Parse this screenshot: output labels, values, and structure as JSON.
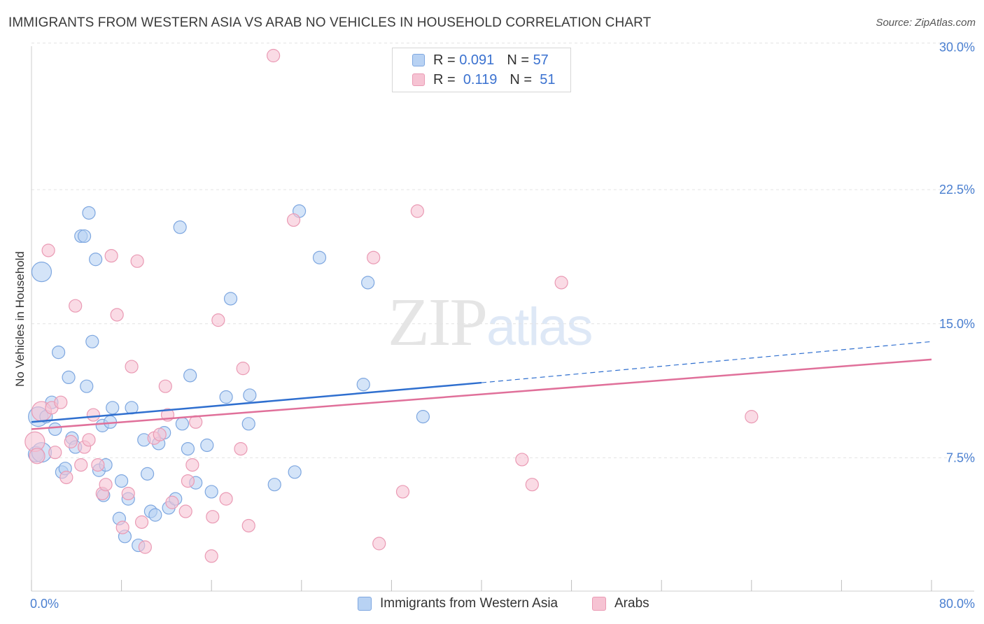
{
  "title": "IMMIGRANTS FROM WESTERN ASIA VS ARAB NO VEHICLES IN HOUSEHOLD CORRELATION CHART",
  "source": "Source: ZipAtlas.com",
  "watermark": {
    "zip": "ZIP",
    "atlas": "atlas"
  },
  "legend": {
    "rows": [
      {
        "r_label": "R =",
        "r_value": "0.091",
        "n_label": "N =",
        "n_value": "57"
      },
      {
        "r_label": "R =",
        "r_value": "0.119",
        "n_label": "N =",
        "n_value": "51"
      }
    ]
  },
  "bottom_legend": [
    "Immigrants from Western Asia",
    "Arabs"
  ],
  "colors": {
    "blue_fill": "#b8d2f3",
    "blue_stroke": "#7ea7e0",
    "blue_line": "#2f6fcf",
    "pink_fill": "#f6c3d3",
    "pink_stroke": "#ea9ab4",
    "pink_line": "#e0709a",
    "grid": "#e3e3e3",
    "tick_text": "#4a7fd0"
  },
  "chart_data": {
    "type": "scatter",
    "title": "IMMIGRANTS FROM WESTERN ASIA VS ARAB NO VEHICLES IN HOUSEHOLD CORRELATION CHART",
    "xlabel": "",
    "ylabel": "No Vehicles in Household",
    "xlim": [
      0,
      80
    ],
    "ylim": [
      0,
      31
    ],
    "x_tick_labels": [
      "0.0%",
      "80.0%"
    ],
    "y_tick_values": [
      7.5,
      15.0,
      22.5,
      30.0
    ],
    "y_tick_labels": [
      "7.5%",
      "15.0%",
      "22.5%",
      "30.0%"
    ],
    "grid": true,
    "series": [
      {
        "name": "Immigrants from Western Asia",
        "color": "#b8d2f3",
        "points": [
          [
            0.6,
            9.8
          ],
          [
            0.4,
            7.7
          ],
          [
            0.9,
            17.9
          ],
          [
            1.3,
            9.8
          ],
          [
            1.8,
            10.6
          ],
          [
            2.1,
            9.1
          ],
          [
            2.4,
            13.4
          ],
          [
            2.7,
            6.7
          ],
          [
            3.0,
            6.9
          ],
          [
            3.3,
            12.0
          ],
          [
            3.6,
            8.6
          ],
          [
            3.9,
            8.1
          ],
          [
            4.4,
            19.9
          ],
          [
            4.7,
            19.9
          ],
          [
            4.9,
            11.5
          ],
          [
            5.1,
            21.2
          ],
          [
            5.4,
            14.0
          ],
          [
            5.7,
            18.6
          ],
          [
            6.0,
            6.8
          ],
          [
            6.3,
            9.3
          ],
          [
            6.4,
            5.4
          ],
          [
            6.6,
            7.1
          ],
          [
            7.0,
            9.5
          ],
          [
            7.2,
            10.3
          ],
          [
            7.8,
            4.1
          ],
          [
            8.0,
            6.2
          ],
          [
            8.3,
            3.1
          ],
          [
            8.6,
            5.2
          ],
          [
            8.9,
            10.3
          ],
          [
            9.5,
            2.6
          ],
          [
            10.0,
            8.5
          ],
          [
            10.3,
            6.6
          ],
          [
            10.6,
            4.5
          ],
          [
            11.0,
            4.3
          ],
          [
            11.3,
            8.3
          ],
          [
            11.8,
            8.9
          ],
          [
            12.2,
            4.7
          ],
          [
            12.8,
            5.2
          ],
          [
            13.2,
            20.4
          ],
          [
            13.4,
            9.4
          ],
          [
            13.9,
            8.0
          ],
          [
            14.1,
            12.1
          ],
          [
            14.6,
            6.1
          ],
          [
            15.6,
            8.2
          ],
          [
            16.0,
            5.6
          ],
          [
            17.3,
            10.9
          ],
          [
            17.7,
            16.4
          ],
          [
            19.3,
            9.4
          ],
          [
            19.4,
            11.0
          ],
          [
            21.6,
            6.0
          ],
          [
            23.4,
            6.7
          ],
          [
            23.8,
            21.3
          ],
          [
            25.6,
            18.7
          ],
          [
            29.5,
            11.6
          ],
          [
            29.9,
            17.3
          ],
          [
            34.8,
            9.8
          ],
          [
            0.9,
            7.8
          ]
        ]
      },
      {
        "name": "Arabs",
        "color": "#f6c3d3",
        "points": [
          [
            0.3,
            8.4
          ],
          [
            0.5,
            7.6
          ],
          [
            0.9,
            10.1
          ],
          [
            1.5,
            19.1
          ],
          [
            1.8,
            10.3
          ],
          [
            2.1,
            7.8
          ],
          [
            2.6,
            10.6
          ],
          [
            3.1,
            6.4
          ],
          [
            3.5,
            8.4
          ],
          [
            3.9,
            16.0
          ],
          [
            4.4,
            7.1
          ],
          [
            4.7,
            8.1
          ],
          [
            5.1,
            8.5
          ],
          [
            5.5,
            9.9
          ],
          [
            5.9,
            7.1
          ],
          [
            6.3,
            5.5
          ],
          [
            6.6,
            6.0
          ],
          [
            7.1,
            18.8
          ],
          [
            7.6,
            15.5
          ],
          [
            8.1,
            3.6
          ],
          [
            8.6,
            5.5
          ],
          [
            8.9,
            12.6
          ],
          [
            9.4,
            18.5
          ],
          [
            9.8,
            3.9
          ],
          [
            10.1,
            2.5
          ],
          [
            10.9,
            8.6
          ],
          [
            11.4,
            8.8
          ],
          [
            11.9,
            11.5
          ],
          [
            12.1,
            9.9
          ],
          [
            12.5,
            5.0
          ],
          [
            13.7,
            4.5
          ],
          [
            13.9,
            6.2
          ],
          [
            14.3,
            7.1
          ],
          [
            14.6,
            9.5
          ],
          [
            16.0,
            2.0
          ],
          [
            16.1,
            4.2
          ],
          [
            16.6,
            15.2
          ],
          [
            17.3,
            5.2
          ],
          [
            18.6,
            8.0
          ],
          [
            18.8,
            12.5
          ],
          [
            19.3,
            3.7
          ],
          [
            21.5,
            30.0
          ],
          [
            23.3,
            20.8
          ],
          [
            30.4,
            18.7
          ],
          [
            30.9,
            2.7
          ],
          [
            33.0,
            5.6
          ],
          [
            34.3,
            21.3
          ],
          [
            43.6,
            7.4
          ],
          [
            44.5,
            6.0
          ],
          [
            47.1,
            17.3
          ],
          [
            64.0,
            9.8
          ]
        ]
      }
    ],
    "trend_lines": [
      {
        "series": "Immigrants from Western Asia",
        "x0": 0,
        "y0": 9.5,
        "x1": 40,
        "y1": 11.7,
        "dashed_to_x": 80,
        "dashed_to_y": 14.0
      },
      {
        "series": "Arabs",
        "x0": 0,
        "y0": 9.1,
        "x1": 80,
        "y1": 13.0
      }
    ]
  }
}
